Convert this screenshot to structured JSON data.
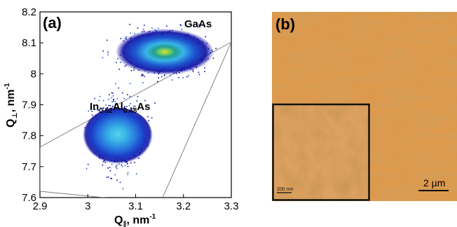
{
  "panel_a": {
    "label": "(a)",
    "peak_labels": {
      "gaas": "GaAs",
      "inalas_main": "In",
      "inalas_sub1": "0.52",
      "inalas_mid": "Al",
      "inalas_sub2": "0.48",
      "inalas_end": "As"
    },
    "xlabel_main": "Q",
    "xlabel_sub": "∥",
    "xlabel_unit": ", nm",
    "xlabel_exp": "-1",
    "ylabel_main": "Q",
    "ylabel_sub": "⊥",
    "ylabel_unit": ", nm",
    "ylabel_exp": "-1"
  },
  "panel_b": {
    "label": "(b)",
    "scale_bar_main": "2 µm",
    "scale_bar_inset": "200 nm"
  },
  "chart_data": {
    "type": "heatmap",
    "xlim": [
      2.9,
      3.3
    ],
    "ylim": [
      7.6,
      8.2
    ],
    "xticks": [
      "2.9",
      "3",
      "3.1",
      "3.2",
      "3.3"
    ],
    "yticks": [
      "7.6",
      "7.7",
      "7.8",
      "7.9",
      "8",
      "8.1",
      "8.2"
    ],
    "peaks": [
      {
        "name": "GaAs",
        "qx": 3.16,
        "qz": 8.07
      },
      {
        "name": "In0.52Al0.48As",
        "qx": 3.06,
        "qz": 7.81
      }
    ],
    "colors": {
      "outer": "#0a0aa0",
      "mid": "#1e5ad2",
      "inner": "#38b4e6",
      "core": "#7ad060",
      "peak": "#e8e020",
      "afm_base": "#d68a3a"
    }
  }
}
